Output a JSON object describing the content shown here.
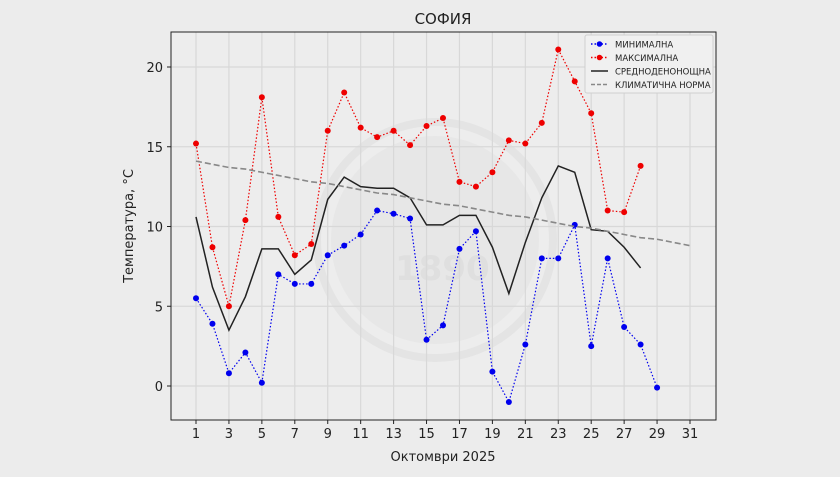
{
  "chart_data": {
    "type": "line",
    "title": "СОФИЯ",
    "xlabel": "Октомври  2025",
    "ylabel": "Температура,  °C",
    "xlim": [
      0.5,
      32
    ],
    "ylim": [
      -2.2,
      22.2
    ],
    "xticks": [
      1,
      3,
      5,
      7,
      9,
      11,
      13,
      15,
      17,
      19,
      21,
      23,
      25,
      27,
      29,
      31
    ],
    "yticks": [
      0,
      5,
      10,
      15,
      20
    ],
    "grid": true,
    "legend_position": "top-right",
    "watermark_text": "1890",
    "series": [
      {
        "name": "МИНИМАЛНА",
        "color": "#0000ee",
        "style": "dotted-marker",
        "x": [
          1,
          2,
          3,
          4,
          5,
          6,
          7,
          8,
          9,
          10,
          11,
          12,
          13,
          14,
          15,
          16,
          17,
          18,
          19,
          20,
          21,
          22,
          23,
          24,
          25,
          26,
          27,
          28,
          29
        ],
        "values": [
          5.5,
          3.9,
          0.8,
          2.1,
          0.2,
          7.0,
          6.4,
          6.4,
          8.2,
          8.8,
          9.5,
          11.0,
          10.8,
          10.5,
          2.9,
          3.8,
          8.6,
          9.7,
          0.9,
          -1.0,
          2.6,
          8.0,
          8.0,
          10.1,
          2.5,
          8.0,
          3.7,
          2.6,
          -0.1
        ]
      },
      {
        "name": "МАКСИМАЛНА",
        "color": "#ee0000",
        "style": "dotted-marker",
        "x": [
          1,
          2,
          3,
          4,
          5,
          6,
          7,
          8,
          9,
          10,
          11,
          12,
          13,
          14,
          15,
          16,
          17,
          18,
          19,
          20,
          21,
          22,
          23,
          24,
          25,
          26,
          27,
          28
        ],
        "values": [
          15.2,
          8.7,
          5.0,
          10.4,
          18.1,
          10.6,
          8.2,
          8.9,
          16.0,
          18.4,
          16.2,
          15.6,
          16.0,
          15.1,
          16.3,
          16.8,
          12.8,
          12.5,
          13.4,
          15.4,
          15.2,
          16.5,
          21.1,
          19.1,
          17.1,
          11.0,
          10.9,
          13.8
        ]
      },
      {
        "name": "СРЕДНОДЕНОНОЩНА",
        "color": "#222222",
        "style": "solid",
        "x": [
          1,
          2,
          3,
          4,
          5,
          6,
          7,
          8,
          9,
          10,
          11,
          12,
          13,
          14,
          15,
          16,
          17,
          18,
          19,
          20,
          21,
          22,
          23,
          24,
          25,
          26,
          27,
          28
        ],
        "values": [
          10.6,
          6.2,
          3.5,
          5.6,
          8.6,
          8.6,
          7.0,
          7.9,
          11.7,
          13.1,
          12.5,
          12.4,
          12.4,
          11.8,
          10.1,
          10.1,
          10.7,
          10.7,
          8.7,
          5.8,
          9.0,
          11.8,
          13.8,
          13.4,
          9.8,
          9.7,
          8.7,
          7.4
        ]
      },
      {
        "name": "КЛИМАТИЧНА НОРМА",
        "color": "#888888",
        "style": "dashed",
        "x": [
          1,
          2,
          3,
          4,
          5,
          6,
          7,
          8,
          9,
          10,
          11,
          12,
          13,
          14,
          15,
          16,
          17,
          18,
          19,
          20,
          21,
          22,
          23,
          24,
          25,
          26,
          27,
          28,
          29,
          30,
          31
        ],
        "values": [
          14.1,
          13.9,
          13.7,
          13.6,
          13.4,
          13.2,
          13.0,
          12.8,
          12.7,
          12.5,
          12.3,
          12.1,
          12.0,
          11.8,
          11.6,
          11.4,
          11.3,
          11.1,
          10.9,
          10.7,
          10.6,
          10.4,
          10.2,
          10.0,
          9.9,
          9.7,
          9.5,
          9.3,
          9.2,
          9.0,
          8.8
        ]
      }
    ]
  }
}
